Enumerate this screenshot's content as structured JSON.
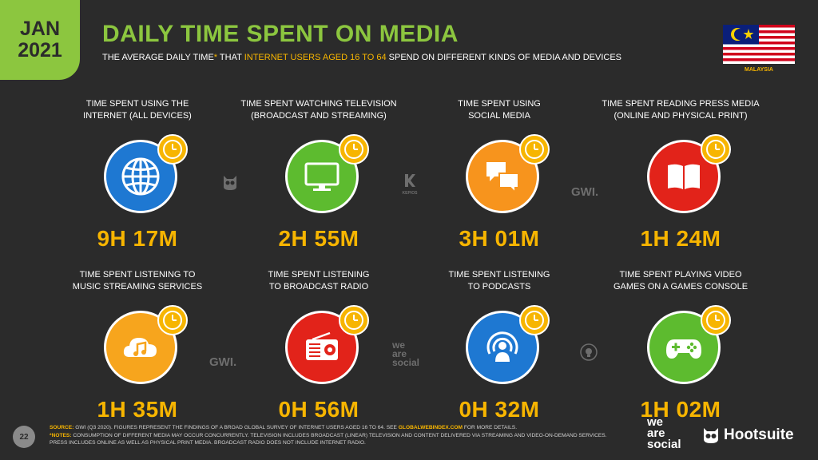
{
  "header": {
    "month": "JAN",
    "year": "2021",
    "title": "DAILY TIME SPENT ON MEDIA",
    "subtitle_pre": "THE AVERAGE DAILY TIME",
    "subtitle_star": "*",
    "subtitle_mid": " THAT ",
    "subtitle_highlight": "INTERNET USERS AGED 16 TO 64",
    "subtitle_post": " SPEND ON DIFFERENT KINDS OF MEDIA AND DEVICES",
    "country": "MALAYSIA"
  },
  "colors": {
    "accent_green": "#8cc63f",
    "accent_yellow": "#f7b500",
    "background": "#2b2b2b"
  },
  "cards": [
    {
      "line1": "TIME SPENT USING THE",
      "line2": "INTERNET (ALL DEVICES)",
      "value": "9H 17M",
      "icon": "globe-icon",
      "color": "#1e78d2"
    },
    {
      "line1": "TIME SPENT WATCHING TELEVISION",
      "line2": "(BROADCAST AND STREAMING)",
      "value": "2H 55M",
      "icon": "television-icon",
      "color": "#5dbb2f"
    },
    {
      "line1": "TIME SPENT USING",
      "line2": "SOCIAL MEDIA",
      "value": "3H 01M",
      "icon": "chat-bubbles-icon",
      "color": "#f7941d"
    },
    {
      "line1": "TIME SPENT READING PRESS MEDIA",
      "line2": "(ONLINE AND PHYSICAL PRINT)",
      "value": "1H 24M",
      "icon": "book-icon",
      "color": "#e2231a"
    },
    {
      "line1": "TIME SPENT LISTENING TO",
      "line2": "MUSIC STREAMING SERVICES",
      "value": "1H 35M",
      "icon": "cloud-music-icon",
      "color": "#f7a51d"
    },
    {
      "line1": "TIME SPENT LISTENING",
      "line2": "TO BROADCAST RADIO",
      "value": "0H 56M",
      "icon": "radio-icon",
      "color": "#e2231a"
    },
    {
      "line1": "TIME SPENT LISTENING",
      "line2": "TO PODCASTS",
      "value": "0H 32M",
      "icon": "podcast-icon",
      "color": "#1e78d2"
    },
    {
      "line1": "TIME SPENT PLAYING VIDEO",
      "line2": "GAMES ON A GAMES CONSOLE",
      "value": "1H 02M",
      "icon": "gamepad-icon",
      "color": "#5dbb2f"
    }
  ],
  "watermarks": {
    "gwi": "GWI.",
    "kepios": "KEPIOS",
    "was_line1": "we",
    "was_line2": "are",
    "was_line3": "social"
  },
  "footer": {
    "page_number": "22",
    "source_label": "SOURCE:",
    "source_text": " GWI (Q3 2020). FIGURES REPRESENT THE FINDINGS OF A BROAD GLOBAL SURVEY OF INTERNET USERS AGED 16 TO 64. SEE ",
    "source_link": "GLOBALWEBINDEX.COM",
    "source_tail": " FOR MORE DETAILS.",
    "notes_label": "*NOTES:",
    "notes_text": " CONSUMPTION OF DIFFERENT MEDIA MAY OCCUR CONCURRENTLY. TELEVISION INCLUDES BROADCAST (LINEAR) TELEVISION AND CONTENT DELIVERED VIA STREAMING AND VIDEO-ON-DEMAND SERVICES. PRESS INCLUDES ONLINE AS WELL AS PHYSICAL PRINT MEDIA. BROADCAST RADIO DOES NOT INCLUDE INTERNET RADIO."
  },
  "brands": {
    "was_line1": "we",
    "was_line2": "are",
    "was_line3": "social",
    "hootsuite": "Hootsuite"
  }
}
